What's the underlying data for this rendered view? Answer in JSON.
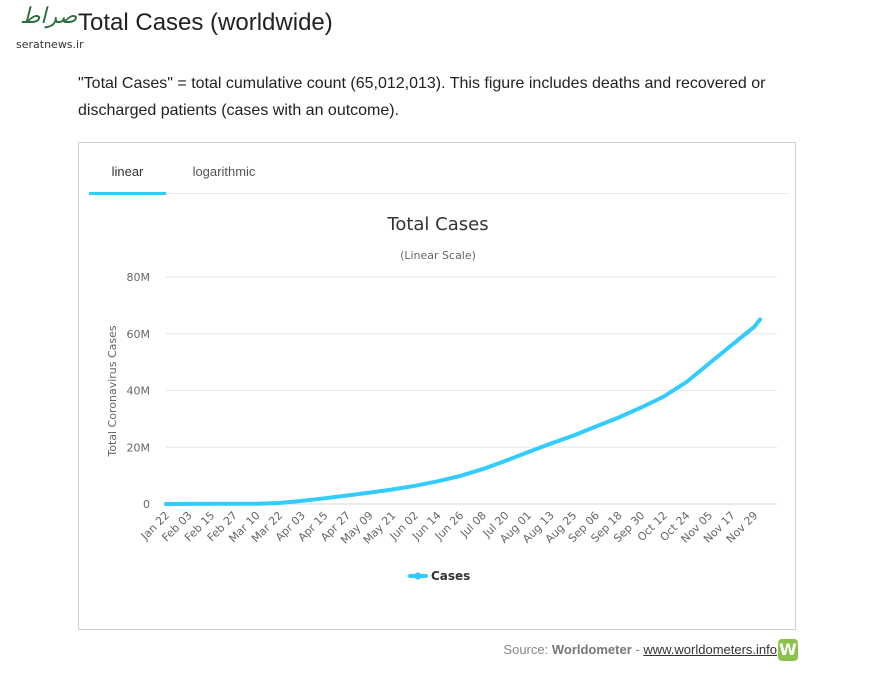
{
  "watermark": {
    "script": "صراط",
    "url": "seratnews.ir"
  },
  "page": {
    "title": "Total Cases (worldwide)",
    "description": "\"Total Cases\" = total cumulative count (65,012,013). This figure includes deaths and recovered or discharged patients (cases with an outcome)."
  },
  "tabs": {
    "linear": "linear",
    "logarithmic": "logarithmic",
    "active": "linear"
  },
  "colors": {
    "series": "#33ccff",
    "tab_underline": "#33ccff",
    "logo": "#8bc34a"
  },
  "source": {
    "prefix": "Source: ",
    "name": "Worldometer",
    "sep": " - ",
    "link": "www.worldometers.info",
    "logo_letter": "W"
  },
  "chart_data": {
    "type": "line",
    "title": "Total Cases",
    "subtitle": "(Linear Scale)",
    "ylabel": "Total Coronavirus Cases",
    "xlabel": "",
    "ylim": [
      0,
      80000000
    ],
    "yticks": [
      0,
      20000000,
      40000000,
      60000000,
      80000000
    ],
    "ytick_labels": [
      "0",
      "20M",
      "40M",
      "60M",
      "80M"
    ],
    "x_tick_labels": [
      "Jan 22",
      "Feb 03",
      "Feb 15",
      "Feb 27",
      "Mar 10",
      "Mar 22",
      "Apr 03",
      "Apr 15",
      "Apr 27",
      "May 09",
      "May 21",
      "Jun 02",
      "Jun 14",
      "Jun 26",
      "Jul 08",
      "Jul 20",
      "Aug 01",
      "Aug 13",
      "Aug 25",
      "Sep 06",
      "Sep 18",
      "Sep 30",
      "Oct 12",
      "Oct 24",
      "Nov 05",
      "Nov 17",
      "Nov 29"
    ],
    "grid": true,
    "legend": "bottom-center",
    "series": [
      {
        "name": "Cases",
        "x": [
          "Jan 22",
          "Feb 03",
          "Feb 15",
          "Feb 27",
          "Mar 10",
          "Mar 22",
          "Apr 03",
          "Apr 15",
          "Apr 27",
          "May 09",
          "May 21",
          "Jun 02",
          "Jun 14",
          "Jun 26",
          "Jul 08",
          "Jul 20",
          "Aug 01",
          "Aug 13",
          "Aug 25",
          "Sep 06",
          "Sep 18",
          "Sep 30",
          "Oct 12",
          "Oct 24",
          "Nov 05",
          "Nov 17",
          "Nov 29",
          "Dec 02"
        ],
        "values": [
          0,
          20000,
          70000,
          85000,
          120000,
          340000,
          1100000,
          2000000,
          3000000,
          4000000,
          5100000,
          6400000,
          8000000,
          9900000,
          12300000,
          15200000,
          18300000,
          21300000,
          24100000,
          27300000,
          30500000,
          34000000,
          37900000,
          43000000,
          49500000,
          56000000,
          62500000,
          65012013
        ]
      }
    ]
  }
}
